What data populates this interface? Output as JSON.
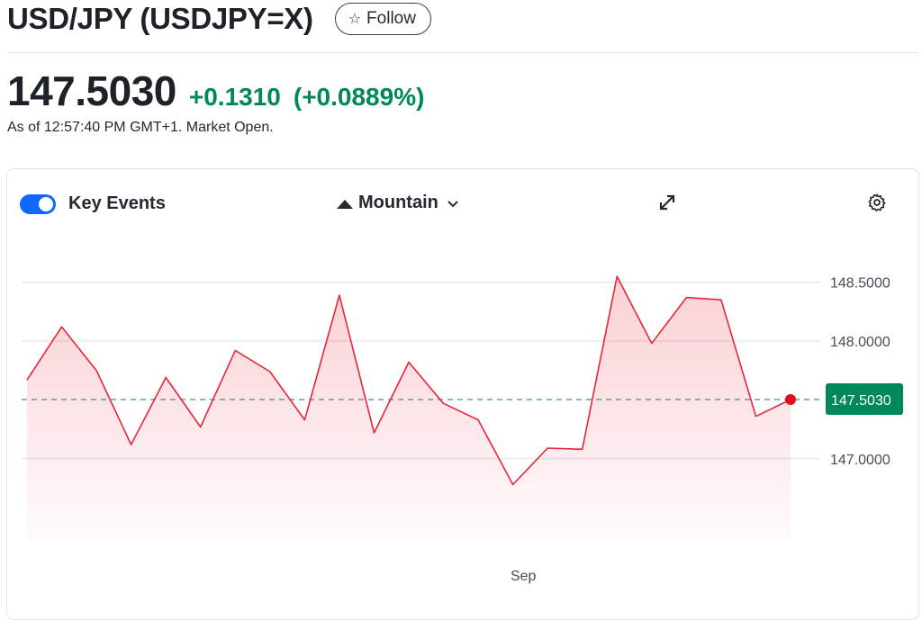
{
  "header": {
    "title": "USD/JPY (USDJPY=X)",
    "follow_label": "Follow"
  },
  "quote": {
    "price": "147.5030",
    "change": "+0.1310",
    "change_pct": "(+0.0889%)",
    "as_of": "As of 12:57:40 PM GMT+1. Market Open."
  },
  "toolbar": {
    "key_events_label": "Key Events",
    "key_events_on": true,
    "chart_type_label": "Mountain",
    "icons": {
      "toggle": "toggle-switch",
      "mountain": "mountain-icon",
      "chevron": "chevron-down-icon",
      "expand": "expand-icon",
      "settings": "gear-icon"
    }
  },
  "colors": {
    "line": "#e8263a",
    "positive": "#00875a",
    "accent": "#0f69ff"
  },
  "chart_data": {
    "type": "area",
    "ylim": [
      146.7,
      148.65
    ],
    "y_ticks": [
      "148.5000",
      "148.0000",
      "147.0000"
    ],
    "y_tick_values": [
      148.5,
      148.0,
      147.0
    ],
    "x_tick_labels": [
      "Sep"
    ],
    "x_tick_index": 14.3,
    "last_price_label": "147.5030",
    "last_price": 147.503,
    "values": [
      147.67,
      148.12,
      147.75,
      147.12,
      147.69,
      147.27,
      147.92,
      147.74,
      147.33,
      148.39,
      147.22,
      147.82,
      147.47,
      147.33,
      146.78,
      147.09,
      147.08,
      148.55,
      147.98,
      148.37,
      148.35,
      147.36,
      147.503
    ],
    "grid": true
  }
}
